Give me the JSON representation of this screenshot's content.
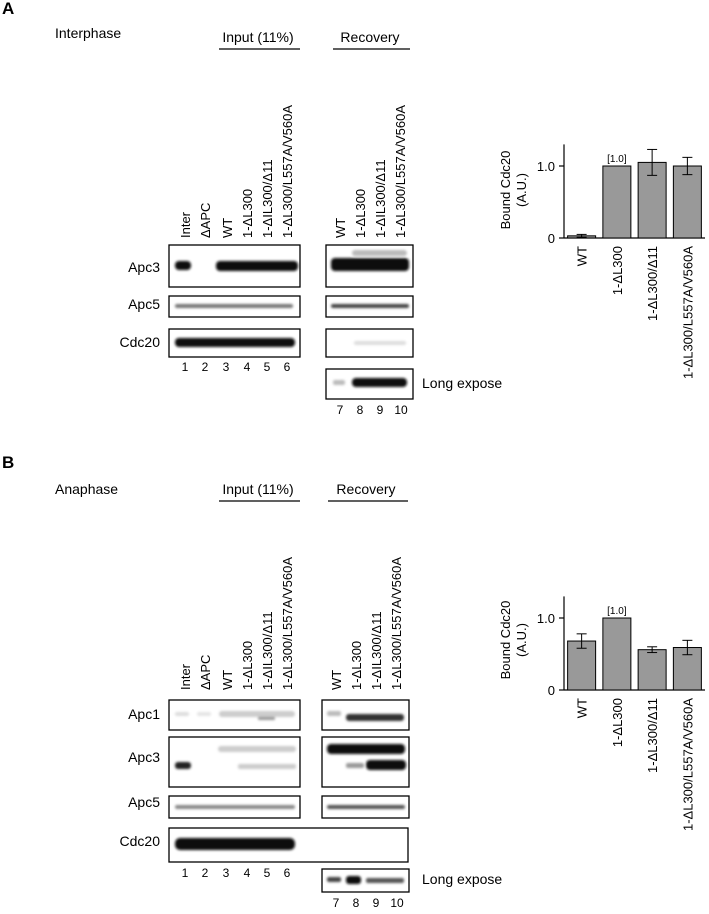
{
  "panels": [
    {
      "letter": "A",
      "condition": "Interphase",
      "input_header": "Input (11%)",
      "recovery_header": "Recovery",
      "lanes_input": [
        "Inter",
        "ΔAPC",
        "WT",
        "1-ΔL300",
        "1-ΔIL300/Δ11",
        "1-ΔL300/L557A/V560A"
      ],
      "lanes_recovery": [
        "WT",
        "1-ΔL300",
        "1-ΔIL300/Δ11",
        "1-ΔL300/L557A/V560A"
      ],
      "rows": [
        "Apc3",
        "Apc5",
        "Cdc20"
      ],
      "extra_row": "Long expose",
      "lane_numbers_input": [
        "1",
        "2",
        "3",
        "4",
        "5",
        "6"
      ],
      "lane_numbers_recovery": [
        "7",
        "8",
        "9",
        "10"
      ]
    },
    {
      "letter": "B",
      "condition": "Anaphase",
      "input_header": "Input (11%)",
      "recovery_header": "Recovery",
      "lanes_input": [
        "Inter",
        "ΔAPC",
        "WT",
        "1-ΔL300",
        "1-ΔIL300/Δ11",
        "1-ΔL300/L557A/V560A"
      ],
      "lanes_recovery": [
        "WT",
        "1-ΔL300",
        "1-ΔIL300/Δ11",
        "1-ΔL300/L557A/V560A"
      ],
      "rows": [
        "Apc1",
        "Apc3",
        "Apc5",
        "Cdc20"
      ],
      "extra_row": "Long expose",
      "lane_numbers_input": [
        "1",
        "2",
        "3",
        "4",
        "5",
        "6"
      ],
      "lane_numbers_recovery": [
        "7",
        "8",
        "9",
        "10"
      ]
    }
  ],
  "chart_data": [
    {
      "type": "bar",
      "panel": "A",
      "ylabel": "Bound Cdc20",
      "ylabel2": "(A.U.)",
      "categories": [
        "WT",
        "1-ΔL300",
        "1-ΔL300/Δ11",
        "1-ΔL300/L557A/V560A"
      ],
      "values": [
        0.03,
        1.0,
        1.05,
        1.0
      ],
      "errors": [
        0.02,
        0,
        0.18,
        0.12
      ],
      "annotation": "[1.0]",
      "annotation_index": 1,
      "ylim": [
        0,
        1.3
      ],
      "yticks": [
        "0",
        "1.0"
      ],
      "bar_color": "#999999"
    },
    {
      "type": "bar",
      "panel": "B",
      "ylabel": "Bound Cdc20",
      "ylabel2": "(A.U.)",
      "categories": [
        "WT",
        "1-ΔL300",
        "1-ΔL300/Δ11",
        "1-ΔL300/L557A/V560A"
      ],
      "values": [
        0.68,
        1.0,
        0.56,
        0.59
      ],
      "errors": [
        0.1,
        0,
        0.04,
        0.1
      ],
      "annotation": "[1.0]",
      "annotation_index": 1,
      "ylim": [
        0,
        1.3
      ],
      "yticks": [
        "0",
        "1.0"
      ],
      "bar_color": "#999999"
    }
  ]
}
